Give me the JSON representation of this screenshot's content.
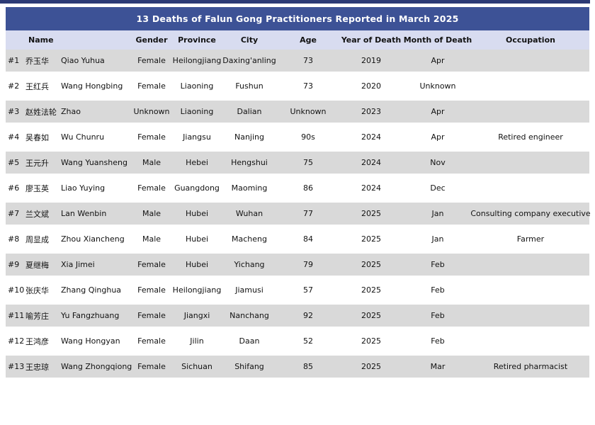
{
  "colors": {
    "top_strip": "#2c3a75",
    "title_bar_bg": "#3d5296",
    "header_row_bg": "#d8dcf0",
    "stripe_row_bg": "#d9d9d9",
    "title_text": "#ffffff",
    "body_text": "#121212"
  },
  "chart_data": {
    "type": "table",
    "title": "13 Deaths of Falun Gong Practitioners Reported in March 2025",
    "columns": [
      "Name",
      "Gender",
      "Province",
      "City",
      "Age",
      "Year of Death",
      "Month of Death",
      "Occupation"
    ],
    "rows": [
      {
        "num": "#1",
        "name_cn": "乔玉华",
        "name_en": "Qiao Yuhua",
        "gender": "Female",
        "province": "Heilongjiang",
        "city": "Daxing'anling",
        "age": "73",
        "year_of_death": "2019",
        "month_of_death": "Apr",
        "occupation": ""
      },
      {
        "num": "#2",
        "name_cn": "王红兵",
        "name_en": "Wang Hongbing",
        "gender": "Female",
        "province": "Liaoning",
        "city": "Fushun",
        "age": "73",
        "year_of_death": "2020",
        "month_of_death": "Unknown",
        "occupation": ""
      },
      {
        "num": "#3",
        "name_cn": "赵姓法轮",
        "name_en": "Zhao",
        "gender": "Unknown",
        "province": "Liaoning",
        "city": "Dalian",
        "age": "Unknown",
        "year_of_death": "2023",
        "month_of_death": "Apr",
        "occupation": ""
      },
      {
        "num": "#4",
        "name_cn": "吴春如",
        "name_en": "Wu Chunru",
        "gender": "Female",
        "province": "Jiangsu",
        "city": "Nanjing",
        "age": "90s",
        "year_of_death": "2024",
        "month_of_death": "Apr",
        "occupation": "Retired engineer"
      },
      {
        "num": "#5",
        "name_cn": "王元升",
        "name_en": "Wang Yuansheng",
        "gender": "Male",
        "province": "Hebei",
        "city": "Hengshui",
        "age": "75",
        "year_of_death": "2024",
        "month_of_death": "Nov",
        "occupation": ""
      },
      {
        "num": "#6",
        "name_cn": "廖玉英",
        "name_en": "Liao Yuying",
        "gender": "Female",
        "province": "Guangdong",
        "city": "Maoming",
        "age": "86",
        "year_of_death": "2024",
        "month_of_death": "Dec",
        "occupation": ""
      },
      {
        "num": "#7",
        "name_cn": "兰文斌",
        "name_en": "Lan Wenbin",
        "gender": "Male",
        "province": "Hubei",
        "city": "Wuhan",
        "age": "77",
        "year_of_death": "2025",
        "month_of_death": "Jan",
        "occupation": "Consulting company executive"
      },
      {
        "num": "#8",
        "name_cn": "周显成",
        "name_en": "Zhou Xiancheng",
        "gender": "Male",
        "province": "Hubei",
        "city": "Macheng",
        "age": "84",
        "year_of_death": "2025",
        "month_of_death": "Jan",
        "occupation": "Farmer"
      },
      {
        "num": "#9",
        "name_cn": "夏继梅",
        "name_en": "Xia Jimei",
        "gender": "Female",
        "province": "Hubei",
        "city": "Yichang",
        "age": "79",
        "year_of_death": "2025",
        "month_of_death": "Feb",
        "occupation": ""
      },
      {
        "num": "#10",
        "name_cn": "张庆华",
        "name_en": "Zhang Qinghua",
        "gender": "Female",
        "province": "Heilongjiang",
        "city": "Jiamusi",
        "age": "57",
        "year_of_death": "2025",
        "month_of_death": "Feb",
        "occupation": ""
      },
      {
        "num": "#11",
        "name_cn": "喻芳庄",
        "name_en": "Yu Fangzhuang",
        "gender": "Female",
        "province": "Jiangxi",
        "city": "Nanchang",
        "age": "92",
        "year_of_death": "2025",
        "month_of_death": "Feb",
        "occupation": ""
      },
      {
        "num": "#12",
        "name_cn": "王鸿彦",
        "name_en": "Wang Hongyan",
        "gender": "Female",
        "province": "Jilin",
        "city": "Daan",
        "age": "52",
        "year_of_death": "2025",
        "month_of_death": "Feb",
        "occupation": ""
      },
      {
        "num": "#13",
        "name_cn": "王忠琼",
        "name_en": "Wang Zhongqiong",
        "gender": "Female",
        "province": "Sichuan",
        "city": "Shifang",
        "age": "85",
        "year_of_death": "2025",
        "month_of_death": "Mar",
        "occupation": "Retired pharmacist"
      }
    ]
  }
}
